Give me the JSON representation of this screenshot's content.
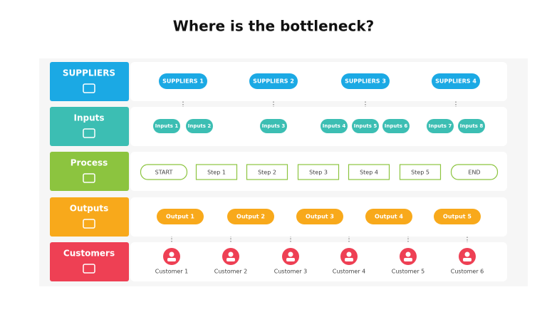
{
  "title": "Where is the bottleneck?",
  "rows": [
    {
      "label": "SUPPLIERS",
      "items": [
        "SUPPLIERS 1",
        "SUPPLIERS 2",
        "SUPPLIERS 3",
        "SUPPLIERS 4"
      ]
    },
    {
      "label": "Inputs",
      "items": [
        "Inputs 1",
        "Inputs 2",
        "Inputs 3",
        "Inputs 4",
        "Inputs 5",
        "Inputs 6",
        "Inputs 7",
        "Inputs 8"
      ]
    },
    {
      "label": "Process",
      "items": [
        "START",
        "Step 1",
        "Step 2",
        "Step 3",
        "Step 4",
        "Step 5",
        "END"
      ]
    },
    {
      "label": "Outputs",
      "items": [
        "Output 1",
        "Output 2",
        "Output 3",
        "Output 4",
        "Output 5"
      ]
    },
    {
      "label": "Customers",
      "items": [
        "Customer 1",
        "Customer 2",
        "Customer 3",
        "Customer 4",
        "Customer 5",
        "Customer 6"
      ]
    }
  ]
}
